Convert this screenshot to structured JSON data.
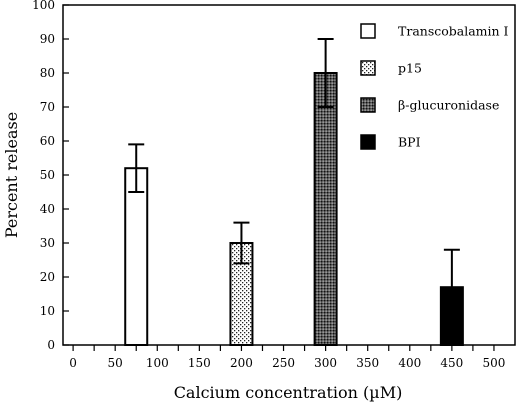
{
  "chart_data": {
    "type": "bar",
    "xlabel": "Calcium concentration (µM)",
    "ylabel": "Percent release",
    "xlim": [
      -12,
      525
    ],
    "ylim": [
      0,
      100
    ],
    "x_ticks": [
      "0",
      "25",
      "50",
      "75",
      "100",
      "125",
      "150",
      "175",
      "200",
      "225",
      "250",
      "275",
      "300",
      "325",
      "350",
      "375",
      "400",
      "425",
      "450",
      "475",
      "500"
    ],
    "x_tick_labels": [
      "0",
      "50",
      "100",
      "150",
      "200",
      "250",
      "300",
      "350",
      "400",
      "450",
      "500"
    ],
    "y_ticks": [
      "0",
      "10",
      "20",
      "30",
      "40",
      "50",
      "60",
      "70",
      "80",
      "90",
      "100"
    ],
    "legend_position": "top-right",
    "grid": false,
    "series": [
      {
        "name": "Transcobalamin I",
        "pattern": "white",
        "x": 75,
        "value": 52,
        "error": 7
      },
      {
        "name": "p15",
        "pattern": "dots",
        "x": 200,
        "value": 30,
        "error": 6
      },
      {
        "name": "β-glucuronidase",
        "pattern": "cross",
        "x": 300,
        "value": 80,
        "error": 10
      },
      {
        "name": "BPI",
        "pattern": "black",
        "x": 450,
        "value": 17,
        "error": 11
      }
    ]
  }
}
